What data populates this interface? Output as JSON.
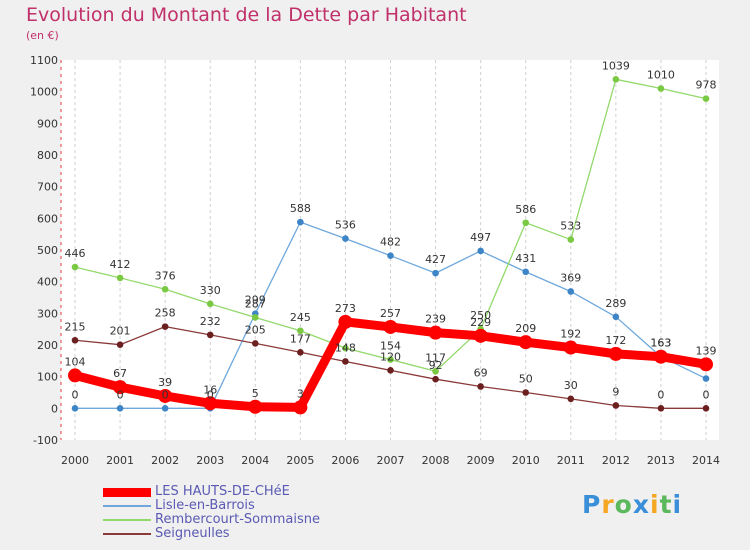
{
  "chart_data": {
    "type": "line",
    "title": "Evolution du Montant de la Dette par Habitant",
    "subtitle": "(en €)",
    "xlabel": "",
    "ylabel": "",
    "x": [
      "2000",
      "2001",
      "2002",
      "2003",
      "2004",
      "2005",
      "2006",
      "2007",
      "2008",
      "2009",
      "2010",
      "2011",
      "2012",
      "2013",
      "2014"
    ],
    "ylim": [
      -100,
      1100
    ],
    "yticks": [
      -100,
      0,
      100,
      200,
      300,
      400,
      500,
      600,
      700,
      800,
      900,
      1000,
      1100
    ],
    "grid": "vertical dashed",
    "legend_position": "bottom-left",
    "series": [
      {
        "name": "LES HAUTS-DE-CHéE",
        "color": "#ff0000",
        "marker_color": "#ff0000",
        "emphasis": true,
        "values": [
          104,
          67,
          39,
          16,
          5,
          3,
          273,
          257,
          239,
          229,
          209,
          192,
          172,
          163,
          139
        ],
        "labels": [
          "104",
          "67",
          "39",
          "16",
          "5",
          "3",
          "273",
          "257",
          "239",
          "229",
          "209",
          "192",
          "172",
          "163",
          "139"
        ]
      },
      {
        "name": "Lisle-en-Barrois",
        "color": "#6fa8dc",
        "marker_color": "#3d85c6",
        "values": [
          0,
          0,
          0,
          0,
          299,
          588,
          536,
          482,
          427,
          497,
          431,
          369,
          289,
          163,
          94
        ],
        "labels": [
          "0",
          "0",
          "0",
          "0",
          "299",
          "588",
          "536",
          "482",
          "427",
          "497",
          "431",
          "369",
          "289",
          "163",
          ""
        ]
      },
      {
        "name": "Rembercourt-Sommaisne",
        "color": "#93d96b",
        "marker_color": "#7ac943",
        "values": [
          446,
          412,
          376,
          330,
          287,
          245,
          190,
          154,
          117,
          250,
          586,
          533,
          1039,
          1010,
          978
        ],
        "labels": [
          "446",
          "412",
          "376",
          "330",
          "287",
          "245",
          "",
          "154",
          "117",
          "250",
          "586",
          "533",
          "1039",
          "1010",
          "978"
        ]
      },
      {
        "name": "Seigneulles",
        "color": "#8b3a3a",
        "marker_color": "#6b1f1f",
        "values": [
          215,
          201,
          258,
          232,
          205,
          177,
          148,
          120,
          92,
          69,
          50,
          30,
          9,
          0,
          0
        ],
        "labels": [
          "215",
          "201",
          "258",
          "232",
          "205",
          "177",
          "148",
          "120",
          "92",
          "69",
          "50",
          "30",
          "9",
          "0",
          "0"
        ]
      }
    ]
  },
  "brand": {
    "text": "Proxiti",
    "colors": [
      "#3a8fd8",
      "#f5a623",
      "#5cb85c",
      "#3a8fd8",
      "#f5a623",
      "#5cb85c",
      "#3a8fd8"
    ]
  }
}
